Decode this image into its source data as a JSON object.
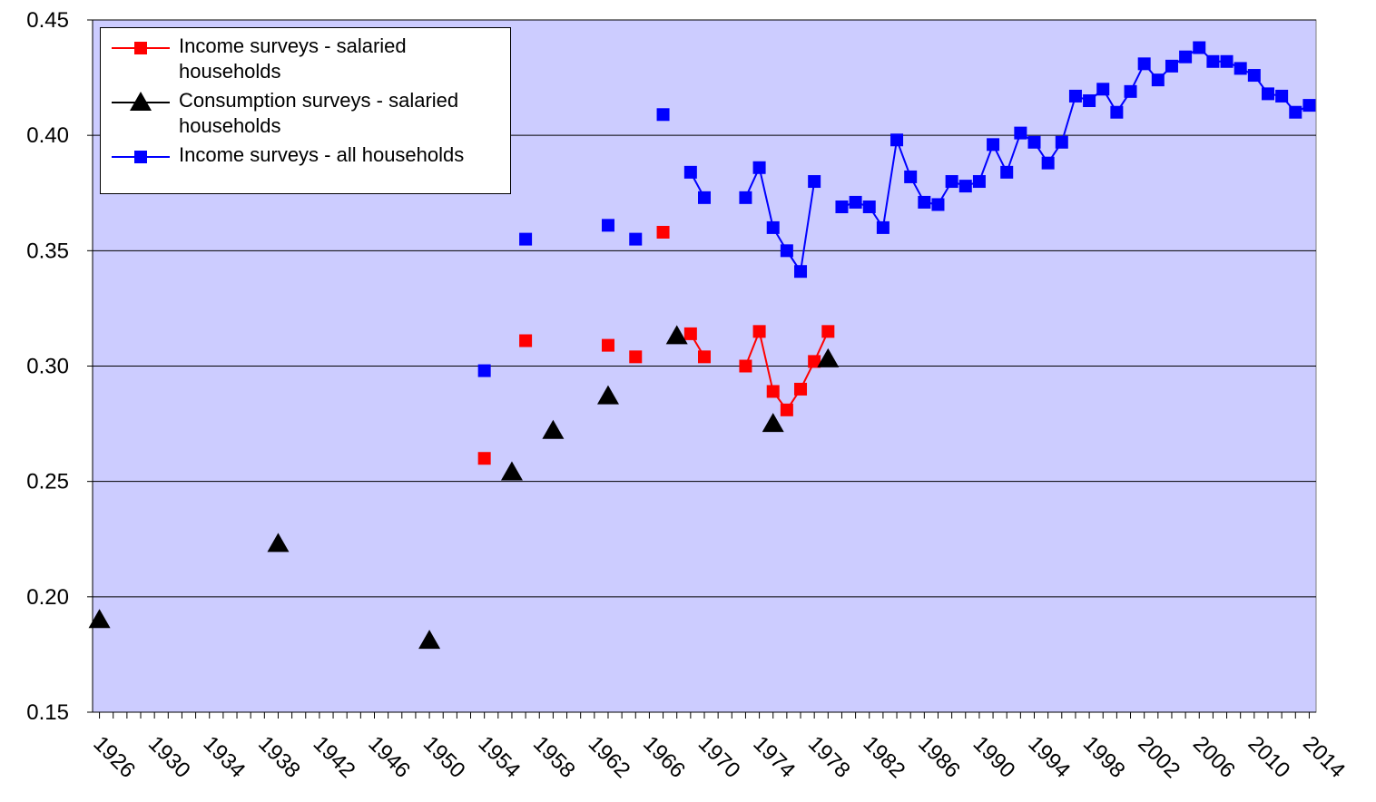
{
  "chart_data": {
    "type": "line",
    "x": [
      1926,
      1927,
      1928,
      1929,
      1930,
      1931,
      1932,
      1933,
      1934,
      1935,
      1936,
      1937,
      1938,
      1939,
      1940,
      1941,
      1942,
      1943,
      1944,
      1945,
      1946,
      1947,
      1948,
      1949,
      1950,
      1951,
      1952,
      1953,
      1954,
      1955,
      1956,
      1957,
      1958,
      1959,
      1960,
      1961,
      1962,
      1963,
      1964,
      1965,
      1966,
      1967,
      1968,
      1969,
      1970,
      1971,
      1972,
      1973,
      1974,
      1975,
      1976,
      1977,
      1978,
      1979,
      1980,
      1981,
      1982,
      1983,
      1984,
      1985,
      1986,
      1987,
      1988,
      1989,
      1990,
      1991,
      1992,
      1993,
      1994,
      1995,
      1996,
      1997,
      1998,
      1999,
      2000,
      2001,
      2002,
      2003,
      2004,
      2005,
      2006,
      2007,
      2008,
      2009,
      2010,
      2011,
      2012,
      2013,
      2014
    ],
    "series": [
      {
        "name": "Income surveys - salaried households",
        "color": "#ff0000",
        "marker": "square",
        "values": [
          null,
          null,
          null,
          null,
          null,
          null,
          null,
          null,
          null,
          null,
          null,
          null,
          null,
          null,
          null,
          null,
          null,
          null,
          null,
          null,
          null,
          null,
          null,
          null,
          null,
          null,
          null,
          null,
          0.26,
          null,
          null,
          0.311,
          null,
          null,
          null,
          null,
          null,
          0.309,
          null,
          0.304,
          null,
          0.358,
          null,
          0.314,
          0.304,
          null,
          null,
          0.3,
          0.315,
          0.289,
          0.281,
          0.29,
          0.302,
          0.315,
          null,
          null,
          null,
          null,
          null,
          null,
          null,
          null,
          null,
          null,
          null,
          null,
          null,
          null,
          null,
          null,
          null,
          null,
          null,
          null,
          null,
          null,
          null,
          null,
          null,
          null,
          null,
          null,
          null,
          null,
          null,
          null,
          null,
          null,
          null
        ]
      },
      {
        "name": "Consumption surveys - salaried households",
        "color": "#000000",
        "marker": "triangle",
        "values": [
          0.19,
          null,
          null,
          null,
          null,
          null,
          null,
          null,
          null,
          null,
          null,
          null,
          null,
          0.223,
          null,
          null,
          null,
          null,
          null,
          null,
          null,
          null,
          null,
          null,
          0.181,
          null,
          null,
          null,
          null,
          null,
          0.254,
          null,
          null,
          0.272,
          null,
          null,
          null,
          0.287,
          null,
          null,
          null,
          null,
          0.313,
          null,
          null,
          null,
          null,
          null,
          null,
          0.275,
          null,
          null,
          null,
          0.303,
          null,
          null,
          null,
          null,
          null,
          null,
          null,
          null,
          null,
          null,
          null,
          null,
          null,
          null,
          null,
          null,
          null,
          null,
          null,
          null,
          null,
          null,
          null,
          null,
          null,
          null,
          null,
          null,
          null,
          null,
          null,
          null,
          null,
          null,
          null
        ]
      },
      {
        "name": "Income surveys - all households",
        "color": "#0000ff",
        "marker": "square",
        "values": [
          null,
          null,
          null,
          null,
          null,
          null,
          null,
          null,
          null,
          null,
          null,
          null,
          null,
          null,
          null,
          null,
          null,
          null,
          null,
          null,
          null,
          null,
          null,
          null,
          null,
          null,
          null,
          null,
          0.298,
          null,
          null,
          0.355,
          null,
          null,
          null,
          null,
          null,
          0.361,
          null,
          0.355,
          null,
          0.409,
          null,
          0.384,
          0.373,
          null,
          null,
          0.373,
          0.386,
          0.36,
          0.35,
          0.341,
          0.38,
          null,
          0.369,
          0.371,
          0.369,
          0.36,
          0.398,
          0.382,
          0.371,
          0.37,
          0.38,
          0.378,
          0.38,
          0.396,
          0.384,
          0.401,
          0.397,
          0.388,
          0.397,
          0.417,
          0.415,
          0.42,
          0.41,
          0.419,
          0.431,
          0.424,
          0.43,
          0.434,
          0.438,
          0.432,
          0.432,
          0.429,
          0.426,
          0.418,
          0.417,
          0.41,
          0.413
        ]
      }
    ],
    "xlim": [
      1925.5,
      2014.5
    ],
    "xticks": [
      1926,
      1930,
      1934,
      1938,
      1942,
      1946,
      1950,
      1954,
      1958,
      1962,
      1966,
      1970,
      1974,
      1978,
      1982,
      1986,
      1990,
      1994,
      1998,
      2002,
      2006,
      2010,
      2014
    ],
    "ylim": [
      0.15,
      0.45
    ],
    "yticks": [
      0.15,
      {
        "value": 0.2,
        "label": "0.20"
      },
      0.25,
      {
        "value": 0.3,
        "label": "0.30"
      },
      0.35,
      {
        "value": 0.4,
        "label": "0.40"
      },
      0.45
    ],
    "grid": true,
    "legend": "upper left",
    "background": "#ccccff"
  }
}
